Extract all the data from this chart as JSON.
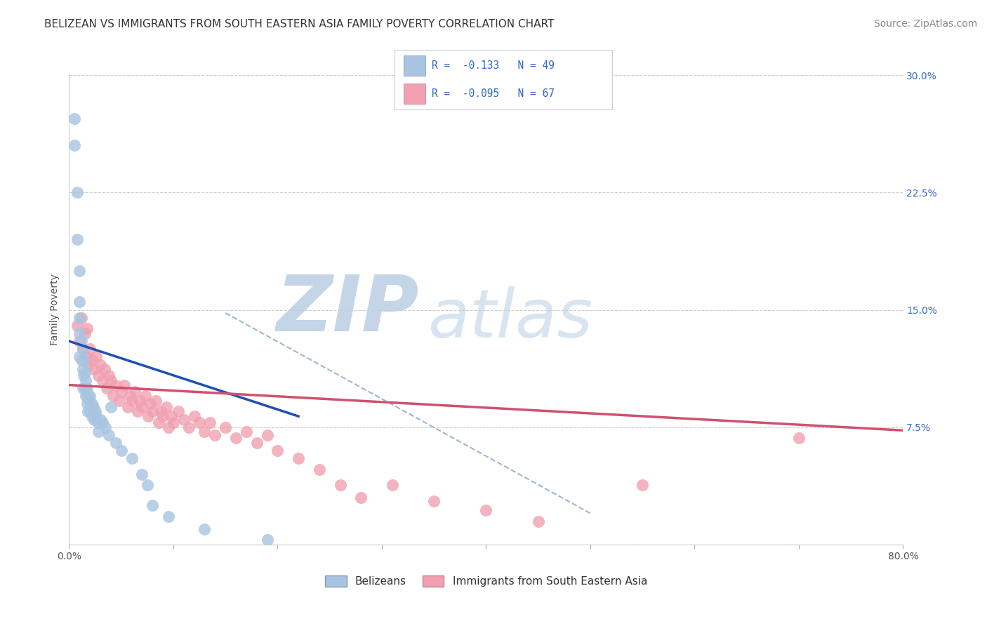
{
  "title": "BELIZEAN VS IMMIGRANTS FROM SOUTH EASTERN ASIA FAMILY POVERTY CORRELATION CHART",
  "source": "Source: ZipAtlas.com",
  "ylabel": "Family Poverty",
  "xlim": [
    0.0,
    0.8
  ],
  "ylim": [
    0.0,
    0.3
  ],
  "xticks": [
    0.0,
    0.1,
    0.2,
    0.3,
    0.4,
    0.5,
    0.6,
    0.7,
    0.8
  ],
  "xticklabels_show": [
    "0.0%",
    "",
    "",
    "",
    "",
    "",
    "",
    "",
    "80.0%"
  ],
  "yticks": [
    0.0,
    0.075,
    0.15,
    0.225,
    0.3
  ],
  "yticklabels": [
    "",
    "7.5%",
    "15.0%",
    "22.5%",
    "30.0%"
  ],
  "grid_color": "#cccccc",
  "background_color": "#ffffff",
  "watermark_zip": "ZIP",
  "watermark_atlas": "atlas",
  "watermark_color_zip": "#c5d5e8",
  "watermark_color_atlas": "#d8e5f0",
  "scatter_blue_color": "#a8c4e0",
  "scatter_pink_color": "#f0a0b0",
  "trend_blue_color": "#2050b0",
  "trend_pink_color": "#d05070",
  "trend_dash_color": "#a0b8cc",
  "blue_scatter_x": [
    0.005,
    0.005,
    0.008,
    0.008,
    0.01,
    0.01,
    0.01,
    0.01,
    0.01,
    0.012,
    0.012,
    0.013,
    0.013,
    0.013,
    0.014,
    0.014,
    0.015,
    0.015,
    0.016,
    0.016,
    0.017,
    0.017,
    0.018,
    0.018,
    0.019,
    0.02,
    0.02,
    0.022,
    0.022,
    0.023,
    0.024,
    0.025,
    0.026,
    0.027,
    0.028,
    0.03,
    0.032,
    0.035,
    0.038,
    0.04,
    0.045,
    0.05,
    0.06,
    0.07,
    0.075,
    0.08,
    0.095,
    0.13,
    0.19
  ],
  "blue_scatter_y": [
    0.272,
    0.255,
    0.225,
    0.195,
    0.175,
    0.155,
    0.145,
    0.135,
    0.12,
    0.13,
    0.118,
    0.125,
    0.112,
    0.1,
    0.118,
    0.108,
    0.11,
    0.1,
    0.105,
    0.095,
    0.1,
    0.09,
    0.095,
    0.085,
    0.092,
    0.095,
    0.085,
    0.09,
    0.082,
    0.088,
    0.08,
    0.085,
    0.082,
    0.078,
    0.072,
    0.08,
    0.078,
    0.075,
    0.07,
    0.088,
    0.065,
    0.06,
    0.055,
    0.045,
    0.038,
    0.025,
    0.018,
    0.01,
    0.003
  ],
  "pink_scatter_x": [
    0.008,
    0.01,
    0.012,
    0.013,
    0.015,
    0.016,
    0.017,
    0.018,
    0.02,
    0.022,
    0.024,
    0.026,
    0.028,
    0.03,
    0.032,
    0.034,
    0.036,
    0.038,
    0.04,
    0.042,
    0.045,
    0.048,
    0.05,
    0.053,
    0.056,
    0.058,
    0.06,
    0.063,
    0.066,
    0.068,
    0.07,
    0.073,
    0.076,
    0.078,
    0.08,
    0.083,
    0.086,
    0.088,
    0.09,
    0.093,
    0.095,
    0.098,
    0.1,
    0.105,
    0.11,
    0.115,
    0.12,
    0.125,
    0.13,
    0.135,
    0.14,
    0.15,
    0.16,
    0.17,
    0.18,
    0.19,
    0.2,
    0.22,
    0.24,
    0.26,
    0.28,
    0.31,
    0.35,
    0.4,
    0.45,
    0.55,
    0.7
  ],
  "pink_scatter_y": [
    0.14,
    0.13,
    0.145,
    0.125,
    0.135,
    0.12,
    0.138,
    0.115,
    0.125,
    0.118,
    0.112,
    0.12,
    0.108,
    0.115,
    0.105,
    0.112,
    0.1,
    0.108,
    0.105,
    0.095,
    0.102,
    0.092,
    0.098,
    0.102,
    0.088,
    0.095,
    0.092,
    0.098,
    0.085,
    0.092,
    0.088,
    0.095,
    0.082,
    0.09,
    0.085,
    0.092,
    0.078,
    0.085,
    0.082,
    0.088,
    0.075,
    0.082,
    0.078,
    0.085,
    0.08,
    0.075,
    0.082,
    0.078,
    0.072,
    0.078,
    0.07,
    0.075,
    0.068,
    0.072,
    0.065,
    0.07,
    0.06,
    0.055,
    0.048,
    0.038,
    0.03,
    0.038,
    0.028,
    0.022,
    0.015,
    0.038,
    0.068
  ],
  "blue_trend_x0": 0.0,
  "blue_trend_x1": 0.22,
  "blue_trend_y0": 0.13,
  "blue_trend_y1": 0.082,
  "pink_trend_x0": 0.0,
  "pink_trend_x1": 0.8,
  "pink_trend_y0": 0.102,
  "pink_trend_y1": 0.073,
  "dash_trend_x0": 0.15,
  "dash_trend_x1": 0.5,
  "dash_trend_y0": 0.148,
  "dash_trend_y1": 0.02,
  "title_fontsize": 11,
  "axis_label_fontsize": 10,
  "tick_fontsize": 10,
  "legend_fontsize": 11,
  "source_fontsize": 10,
  "bottom_legend_label1": "Belizeans",
  "bottom_legend_label2": "Immigrants from South Eastern Asia"
}
